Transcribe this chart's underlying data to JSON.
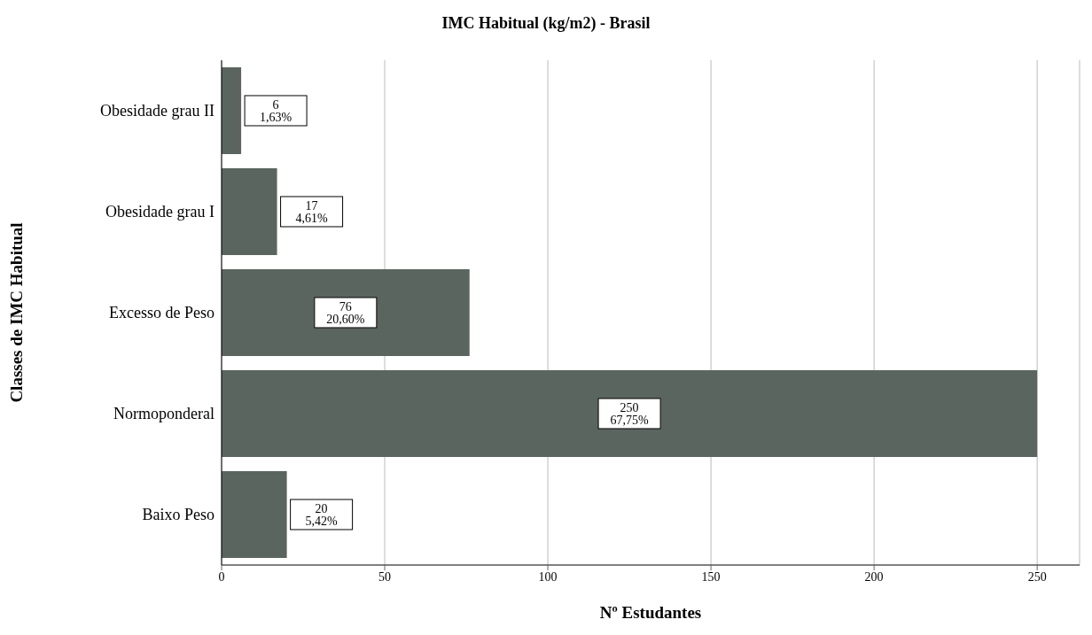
{
  "chart_data": {
    "type": "bar",
    "orientation": "horizontal",
    "title": "IMC Habitual (kg/m2) - Brasil",
    "xlabel": "Nº Estudantes",
    "ylabel": "Classes de IMC Habitual",
    "categories": [
      "Obesidade grau II",
      "Obesidade grau I",
      "Excesso de Peso",
      "Normoponderal",
      "Baixo Peso"
    ],
    "values": [
      6,
      17,
      76,
      250,
      20
    ],
    "value_labels": [
      "6\n1,63%",
      "17\n4,61%",
      "76\n20,60%",
      "250\n67,75%",
      "20\n5,42%"
    ],
    "color": "#5b6560",
    "xlim": [
      0,
      263
    ],
    "xticks": [
      0,
      50,
      100,
      150,
      200,
      250
    ],
    "grid": "x"
  }
}
